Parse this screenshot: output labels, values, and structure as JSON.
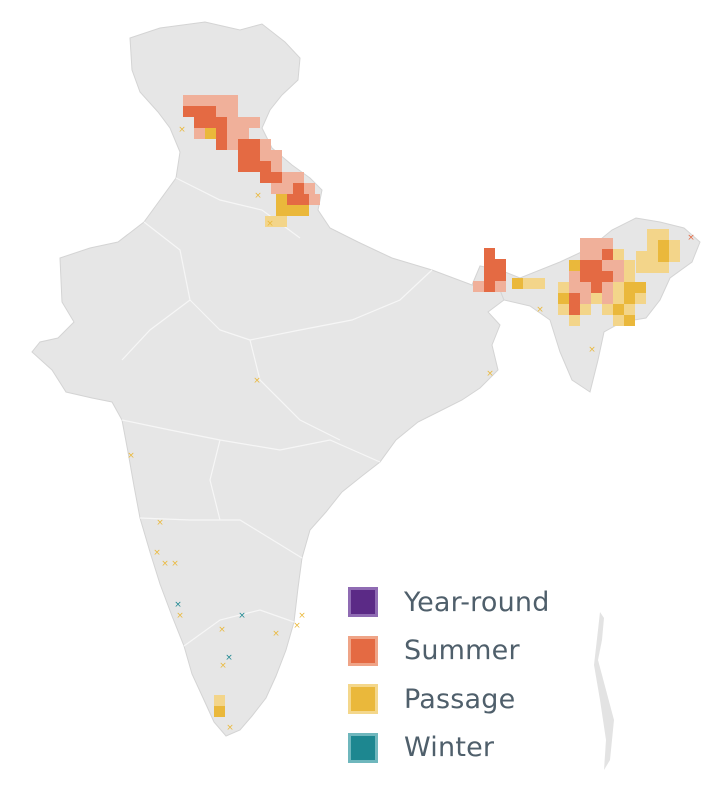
{
  "legend": {
    "items": [
      {
        "label": "Year-round",
        "fill": "#5b2a86",
        "border": "#8f6bb3"
      },
      {
        "label": "Summer",
        "fill": "#e46a43",
        "border": "#efa487"
      },
      {
        "label": "Passage",
        "fill": "#eab83b",
        "border": "#f4d78b"
      },
      {
        "label": "Winter",
        "fill": "#1d8790",
        "border": "#6fb7bd"
      }
    ]
  },
  "colors": {
    "land": "#e5e5e5",
    "border": "#f7f7f7",
    "summer_light": "#f0b09a",
    "summer": "#e46a43",
    "passage": "#eab83b",
    "passage_light": "#f3d58a",
    "winter": "#1d8790"
  }
}
